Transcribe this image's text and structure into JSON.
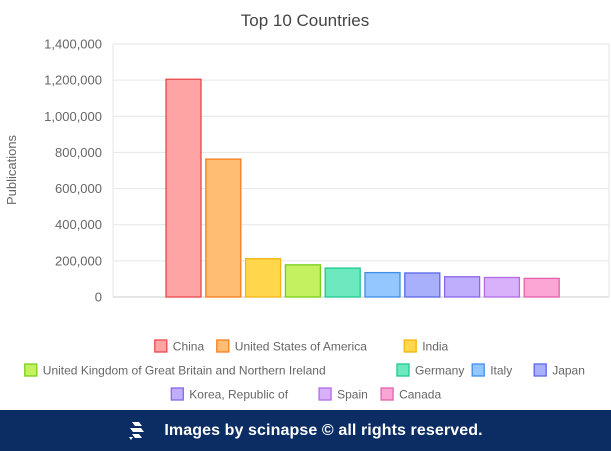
{
  "chart_data": {
    "type": "bar",
    "title": "Top 10 Countries",
    "ylabel": "Publications",
    "xlabel": "",
    "categories": [
      "China",
      "United States of America",
      "India",
      "United Kingdom of Great Britain and Northern Ireland",
      "Germany",
      "Italy",
      "Japan",
      "Korea, Republic of",
      "Spain",
      "Canada"
    ],
    "values": [
      1205000,
      763000,
      212000,
      178000,
      160000,
      135000,
      133000,
      112000,
      108000,
      103000
    ],
    "ylim": [
      0,
      1400000
    ],
    "yticks": [
      "0",
      "200,000",
      "400,000",
      "600,000",
      "800,000",
      "1,000,000",
      "1,200,000",
      "1,400,000"
    ],
    "grid": true,
    "legend_position": "bottom",
    "colors": {
      "fill": [
        "#ffa4a5",
        "#ffbc73",
        "#ffd64c",
        "#c3f160",
        "#6ce9bf",
        "#94c6ff",
        "#a8b0fb",
        "#bfaefb",
        "#d9b1fb",
        "#fba6d4"
      ],
      "stroke": [
        "#e8494c",
        "#f47f1e",
        "#f2b511",
        "#78cf1b",
        "#1ec98e",
        "#3f8fe9",
        "#5b68e8",
        "#8a67e9",
        "#b36be8",
        "#e560ae"
      ]
    }
  },
  "footer": {
    "text": "Images by scinapse © all rights reserved.",
    "logo_icon": "scinapse-logo-icon"
  }
}
